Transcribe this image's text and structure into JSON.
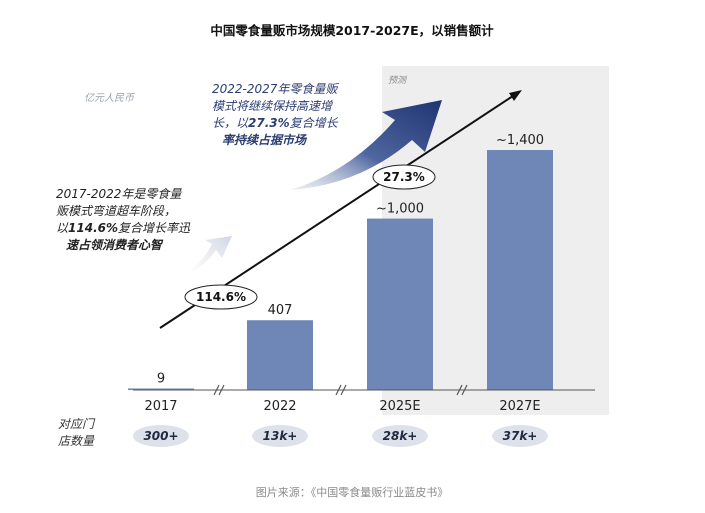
{
  "title": "中国零食量贩市场规模2017-2027E，以销售额计",
  "unit": "亿元人民币",
  "forecast_label": "预测",
  "chart_data": {
    "type": "bar",
    "categories": [
      "2017",
      "2022",
      "2025E",
      "2027E"
    ],
    "values": [
      9,
      407,
      1000,
      1400
    ],
    "value_labels": [
      "9",
      "407",
      "~1,000",
      "~1,400"
    ],
    "ylim": [
      0,
      1550
    ],
    "color": "#6f87b7",
    "forecast_start": "2025E"
  },
  "cagr": [
    {
      "value": "114.6%"
    },
    {
      "value": "27.3%"
    }
  ],
  "annotations": {
    "early": {
      "line1": "2017-2022年是零食量",
      "line2": "贩模式弯道超车阶段，",
      "line3_prefix": "以",
      "line3_rate": "114.6%",
      "line3_suffix": "复合增长率迅",
      "line4": "速占领消费者心智"
    },
    "late": {
      "line1": "2022-2027年零食量贩",
      "line2": "模式将继续保持高速增",
      "line3_prefix": "长，以",
      "line3_rate": "27.3%",
      "line3_suffix": "复合增长",
      "line4": "率持续占据市场"
    }
  },
  "stores": {
    "title_line1": "对应门",
    "title_line2": "店数量",
    "values": [
      "300+",
      "13k+",
      "28k+",
      "37k+"
    ]
  },
  "source": "图片来源：《中国零食量贩行业蓝皮书》"
}
